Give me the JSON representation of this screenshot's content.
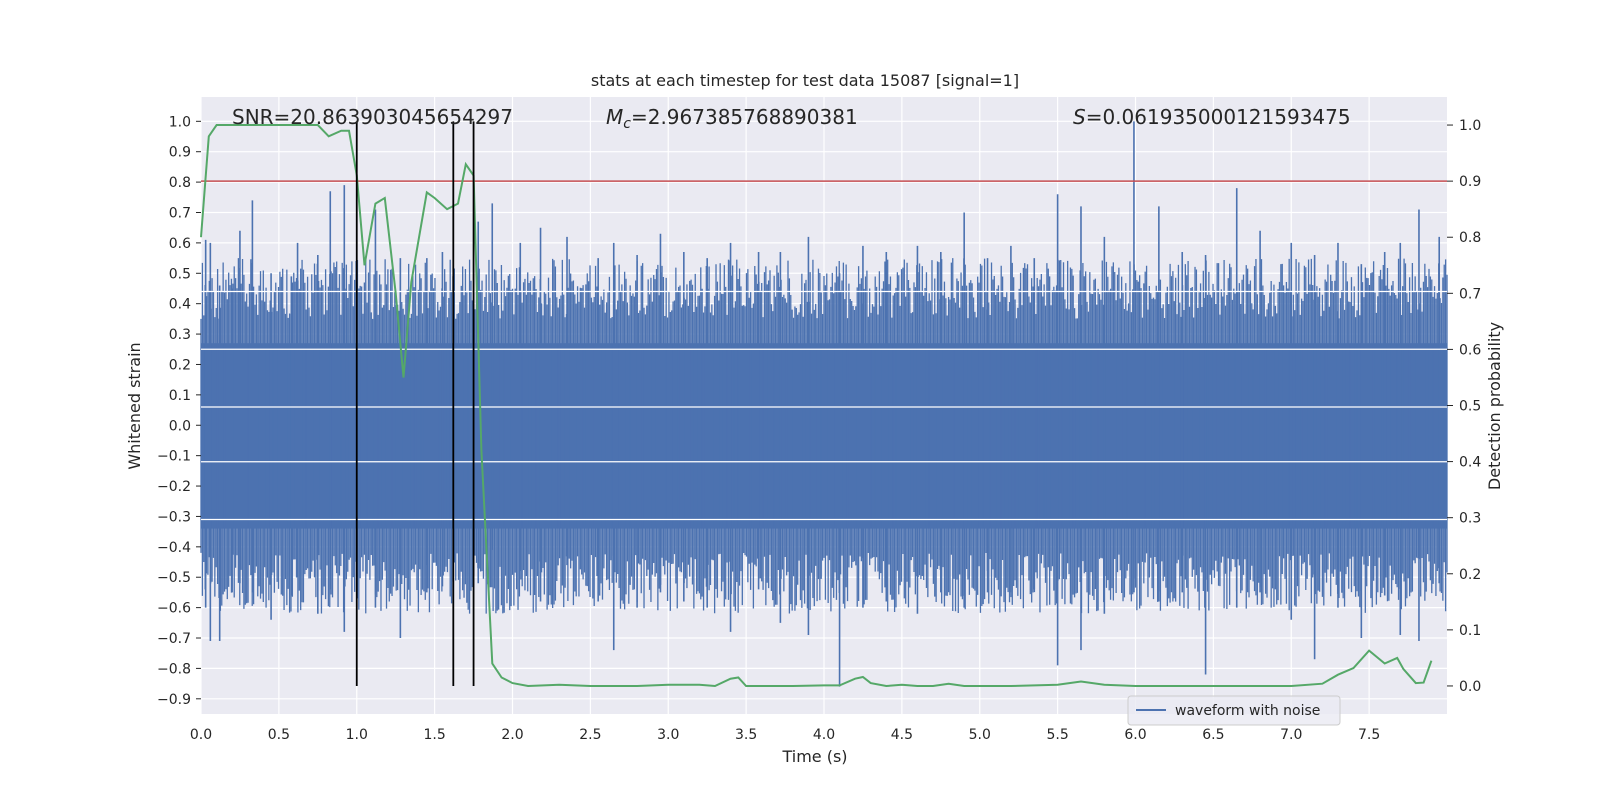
{
  "chart_data": {
    "type": "line",
    "title": "stats at each timestep for test data 15087 [signal=1]",
    "xlabel": "Time (s)",
    "ylabel_left": "Whitened strain",
    "ylabel_right": "Detection probability",
    "xlim": [
      0.0,
      8.0
    ],
    "ylim_left": [
      -0.95,
      1.08
    ],
    "ylim_right": [
      -0.05,
      1.05
    ],
    "x_ticks": [
      0.0,
      0.5,
      1.0,
      1.5,
      2.0,
      2.5,
      3.0,
      3.5,
      4.0,
      4.5,
      5.0,
      5.5,
      6.0,
      6.5,
      7.0,
      7.5
    ],
    "x_tick_labels": [
      "0.0",
      "0.5",
      "1.0",
      "1.5",
      "2.0",
      "2.5",
      "3.0",
      "3.5",
      "4.0",
      "4.5",
      "5.0",
      "5.5",
      "6.0",
      "6.5",
      "7.0",
      "7.5"
    ],
    "y_left_ticks": [
      1.0,
      0.9,
      0.8,
      0.7,
      0.6,
      0.5,
      0.4,
      0.3,
      0.2,
      0.1,
      0.0,
      -0.1,
      -0.2,
      -0.3,
      -0.4,
      -0.5,
      -0.6,
      -0.7,
      -0.8,
      -0.9
    ],
    "y_left_tick_labels": [
      "1.0",
      "0.9",
      "0.8",
      "0.7",
      "0.6",
      "0.5",
      "0.4",
      "0.3",
      "0.2",
      "0.1",
      "0.0",
      "−0.1",
      "−0.2",
      "−0.3",
      "−0.4",
      "−0.5",
      "−0.6",
      "−0.7",
      "−0.8",
      "−0.9"
    ],
    "y_right_ticks": [
      1.0,
      0.9,
      0.8,
      0.7,
      0.6,
      0.5,
      0.4,
      0.3,
      0.2,
      0.1,
      0.0
    ],
    "y_right_tick_labels": [
      "1.0",
      "0.9",
      "0.8",
      "0.7",
      "0.6",
      "0.5",
      "0.4",
      "0.3",
      "0.2",
      "0.1",
      "0.0"
    ],
    "annotations": {
      "snr": "SNR=20.863903045654297",
      "mc_symbol": "M",
      "mc_sub": "c",
      "mc_value": "=2.967385768890381",
      "s_symbol": "S",
      "s_value": "=0.061935000121593475"
    },
    "legend": {
      "label": "waveform with noise",
      "placement": "lower-right"
    },
    "threshold": {
      "y_right": 0.9,
      "color": "#c44e52"
    },
    "event_markers_x": [
      1.0,
      1.62,
      1.75
    ],
    "waveform": {
      "name": "waveform with noise",
      "color": "#4c72b0",
      "core_band": [
        -0.34,
        0.27
      ],
      "spikes": [
        {
          "x": 0.03,
          "hi": 0.61,
          "lo": -0.6
        },
        {
          "x": 0.06,
          "hi": 0.6,
          "lo": -0.71
        },
        {
          "x": 0.12,
          "hi": 0.46,
          "lo": -0.71
        },
        {
          "x": 0.2,
          "hi": 0.45,
          "lo": -0.55
        },
        {
          "x": 0.25,
          "hi": 0.64,
          "lo": -0.52
        },
        {
          "x": 0.33,
          "hi": 0.74,
          "lo": -0.55
        },
        {
          "x": 0.45,
          "hi": 0.5,
          "lo": -0.64
        },
        {
          "x": 0.58,
          "hi": 0.49,
          "lo": -0.56
        },
        {
          "x": 0.62,
          "hi": 0.6,
          "lo": -0.5
        },
        {
          "x": 0.75,
          "hi": 0.56,
          "lo": -0.62
        },
        {
          "x": 0.83,
          "hi": 0.77,
          "lo": -0.54
        },
        {
          "x": 0.92,
          "hi": 0.79,
          "lo": -0.68
        },
        {
          "x": 1.12,
          "hi": 0.71,
          "lo": -0.6
        },
        {
          "x": 1.28,
          "hi": 0.55,
          "lo": -0.7
        },
        {
          "x": 1.45,
          "hi": 0.55,
          "lo": -0.55
        },
        {
          "x": 1.55,
          "hi": 0.57,
          "lo": -0.53
        },
        {
          "x": 1.78,
          "hi": 0.67,
          "lo": -0.52
        },
        {
          "x": 1.87,
          "hi": 0.73,
          "lo": -0.41
        },
        {
          "x": 2.05,
          "hi": 0.6,
          "lo": -0.48
        },
        {
          "x": 2.18,
          "hi": 0.65,
          "lo": -0.58
        },
        {
          "x": 2.35,
          "hi": 0.62,
          "lo": -0.46
        },
        {
          "x": 2.55,
          "hi": 0.55,
          "lo": -0.58
        },
        {
          "x": 2.65,
          "hi": 0.6,
          "lo": -0.74
        },
        {
          "x": 2.8,
          "hi": 0.56,
          "lo": -0.6
        },
        {
          "x": 2.95,
          "hi": 0.63,
          "lo": -0.55
        },
        {
          "x": 3.1,
          "hi": 0.57,
          "lo": -0.58
        },
        {
          "x": 3.25,
          "hi": 0.55,
          "lo": -0.6
        },
        {
          "x": 3.4,
          "hi": 0.6,
          "lo": -0.68
        },
        {
          "x": 3.58,
          "hi": 0.57,
          "lo": -0.54
        },
        {
          "x": 3.72,
          "hi": 0.57,
          "lo": -0.65
        },
        {
          "x": 3.9,
          "hi": 0.62,
          "lo": -0.69
        },
        {
          "x": 4.1,
          "hi": 0.5,
          "lo": -0.86
        },
        {
          "x": 4.25,
          "hi": 0.59,
          "lo": -0.6
        },
        {
          "x": 4.4,
          "hi": 0.57,
          "lo": -0.58
        },
        {
          "x": 4.6,
          "hi": 0.59,
          "lo": -0.62
        },
        {
          "x": 4.75,
          "hi": 0.57,
          "lo": -0.55
        },
        {
          "x": 4.9,
          "hi": 0.7,
          "lo": -0.6
        },
        {
          "x": 5.05,
          "hi": 0.55,
          "lo": -0.55
        },
        {
          "x": 5.2,
          "hi": 0.59,
          "lo": -0.55
        },
        {
          "x": 5.35,
          "hi": 0.55,
          "lo": -0.54
        },
        {
          "x": 5.5,
          "hi": 0.76,
          "lo": -0.79
        },
        {
          "x": 5.65,
          "hi": 0.72,
          "lo": -0.74
        },
        {
          "x": 5.8,
          "hi": 0.62,
          "lo": -0.62
        },
        {
          "x": 5.99,
          "hi": 1.0,
          "lo": -0.55
        },
        {
          "x": 6.15,
          "hi": 0.72,
          "lo": -0.58
        },
        {
          "x": 6.3,
          "hi": 0.57,
          "lo": -0.55
        },
        {
          "x": 6.45,
          "hi": 0.56,
          "lo": -0.82
        },
        {
          "x": 6.65,
          "hi": 0.78,
          "lo": -0.6
        },
        {
          "x": 6.8,
          "hi": 0.64,
          "lo": -0.55
        },
        {
          "x": 7.0,
          "hi": 0.6,
          "lo": -0.64
        },
        {
          "x": 7.15,
          "hi": 0.56,
          "lo": -0.77
        },
        {
          "x": 7.3,
          "hi": 0.6,
          "lo": -0.6
        },
        {
          "x": 7.45,
          "hi": 0.53,
          "lo": -0.7
        },
        {
          "x": 7.6,
          "hi": 0.57,
          "lo": -0.56
        },
        {
          "x": 7.7,
          "hi": 0.6,
          "lo": -0.69
        },
        {
          "x": 7.82,
          "hi": 0.71,
          "lo": -0.71
        },
        {
          "x": 7.95,
          "hi": 0.62,
          "lo": -0.52
        }
      ]
    },
    "detection_probability": {
      "color": "#55a868",
      "x": [
        0.0,
        0.05,
        0.1,
        0.2,
        0.3,
        0.5,
        0.7,
        0.75,
        0.82,
        0.9,
        0.95,
        1.0,
        1.05,
        1.12,
        1.18,
        1.25,
        1.3,
        1.35,
        1.45,
        1.5,
        1.58,
        1.65,
        1.7,
        1.75,
        1.8,
        1.87,
        1.93,
        2.0,
        2.1,
        2.3,
        2.5,
        2.8,
        3.0,
        3.2,
        3.3,
        3.4,
        3.45,
        3.5,
        3.6,
        3.8,
        4.0,
        4.1,
        4.2,
        4.25,
        4.3,
        4.4,
        4.5,
        4.6,
        4.7,
        4.8,
        4.9,
        5.0,
        5.2,
        5.5,
        5.65,
        5.8,
        6.0,
        6.3,
        6.6,
        7.0,
        7.2,
        7.3,
        7.4,
        7.5,
        7.6,
        7.68,
        7.72,
        7.8,
        7.85,
        7.9
      ],
      "y": [
        0.8,
        0.98,
        1.0,
        1.0,
        1.0,
        1.0,
        1.0,
        1.0,
        0.98,
        0.99,
        0.99,
        0.91,
        0.75,
        0.86,
        0.87,
        0.7,
        0.55,
        0.72,
        0.88,
        0.87,
        0.85,
        0.86,
        0.93,
        0.91,
        0.42,
        0.04,
        0.015,
        0.005,
        0.0,
        0.002,
        0.0,
        0.0,
        0.002,
        0.002,
        0.0,
        0.013,
        0.015,
        0.0,
        0.0,
        0.0,
        0.001,
        0.001,
        0.013,
        0.016,
        0.005,
        0.0,
        0.002,
        0.0,
        0.0,
        0.004,
        0.0,
        0.0,
        0.0,
        0.002,
        0.008,
        0.002,
        0.0,
        0.0,
        0.0,
        0.0,
        0.004,
        0.02,
        0.032,
        0.063,
        0.04,
        0.05,
        0.03,
        0.005,
        0.006,
        0.045
      ]
    }
  }
}
